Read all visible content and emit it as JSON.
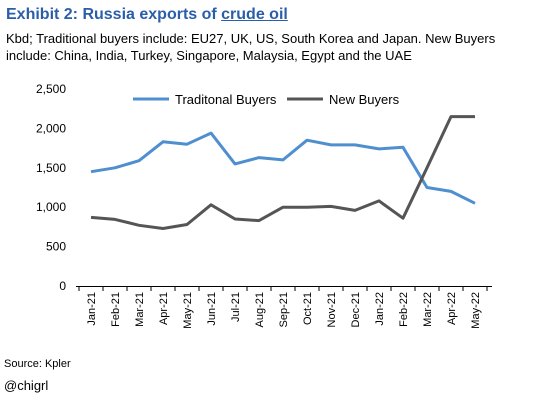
{
  "header": {
    "title_prefix": "Exhibit 2: Russia exports of ",
    "title_link": "crude oil",
    "subtitle": "Kbd; Traditional buyers include: EU27, UK, US, South Korea and Japan. New Buyers include: China, India, Turkey, Singapore, Malaysia, Egypt and the UAE"
  },
  "footer": {
    "source": "Source: Kpler",
    "handle": "@chigrl"
  },
  "chart_data": {
    "type": "line",
    "categories": [
      "Jan-21",
      "Feb-21",
      "Mar-21",
      "Apr-21",
      "May-21",
      "Jun-21",
      "Jul-21",
      "Aug-21",
      "Sep-21",
      "Oct-21",
      "Nov-21",
      "Dec-21",
      "Jan-22",
      "Feb-22",
      "Mar-22",
      "Apr-22",
      "May-22"
    ],
    "series": [
      {
        "name": "Traditonal Buyers",
        "color": "#4f8fd0",
        "values": [
          1450,
          1500,
          1590,
          1830,
          1800,
          1940,
          1550,
          1630,
          1600,
          1850,
          1790,
          1790,
          1740,
          1760,
          1250,
          1200,
          1050
        ]
      },
      {
        "name": "New Buyers",
        "color": "#555555",
        "values": [
          870,
          845,
          770,
          730,
          780,
          1030,
          850,
          830,
          1000,
          1000,
          1010,
          960,
          1080,
          860,
          1500,
          2150,
          2150
        ]
      }
    ],
    "ylim": [
      0,
      2500
    ],
    "yticks": [
      0,
      500,
      1000,
      1500,
      2000,
      2500
    ],
    "ytick_labels": [
      "0",
      "500",
      "1,000",
      "1,500",
      "2,000",
      "2,500"
    ],
    "legend_position": "top",
    "grid": false
  }
}
